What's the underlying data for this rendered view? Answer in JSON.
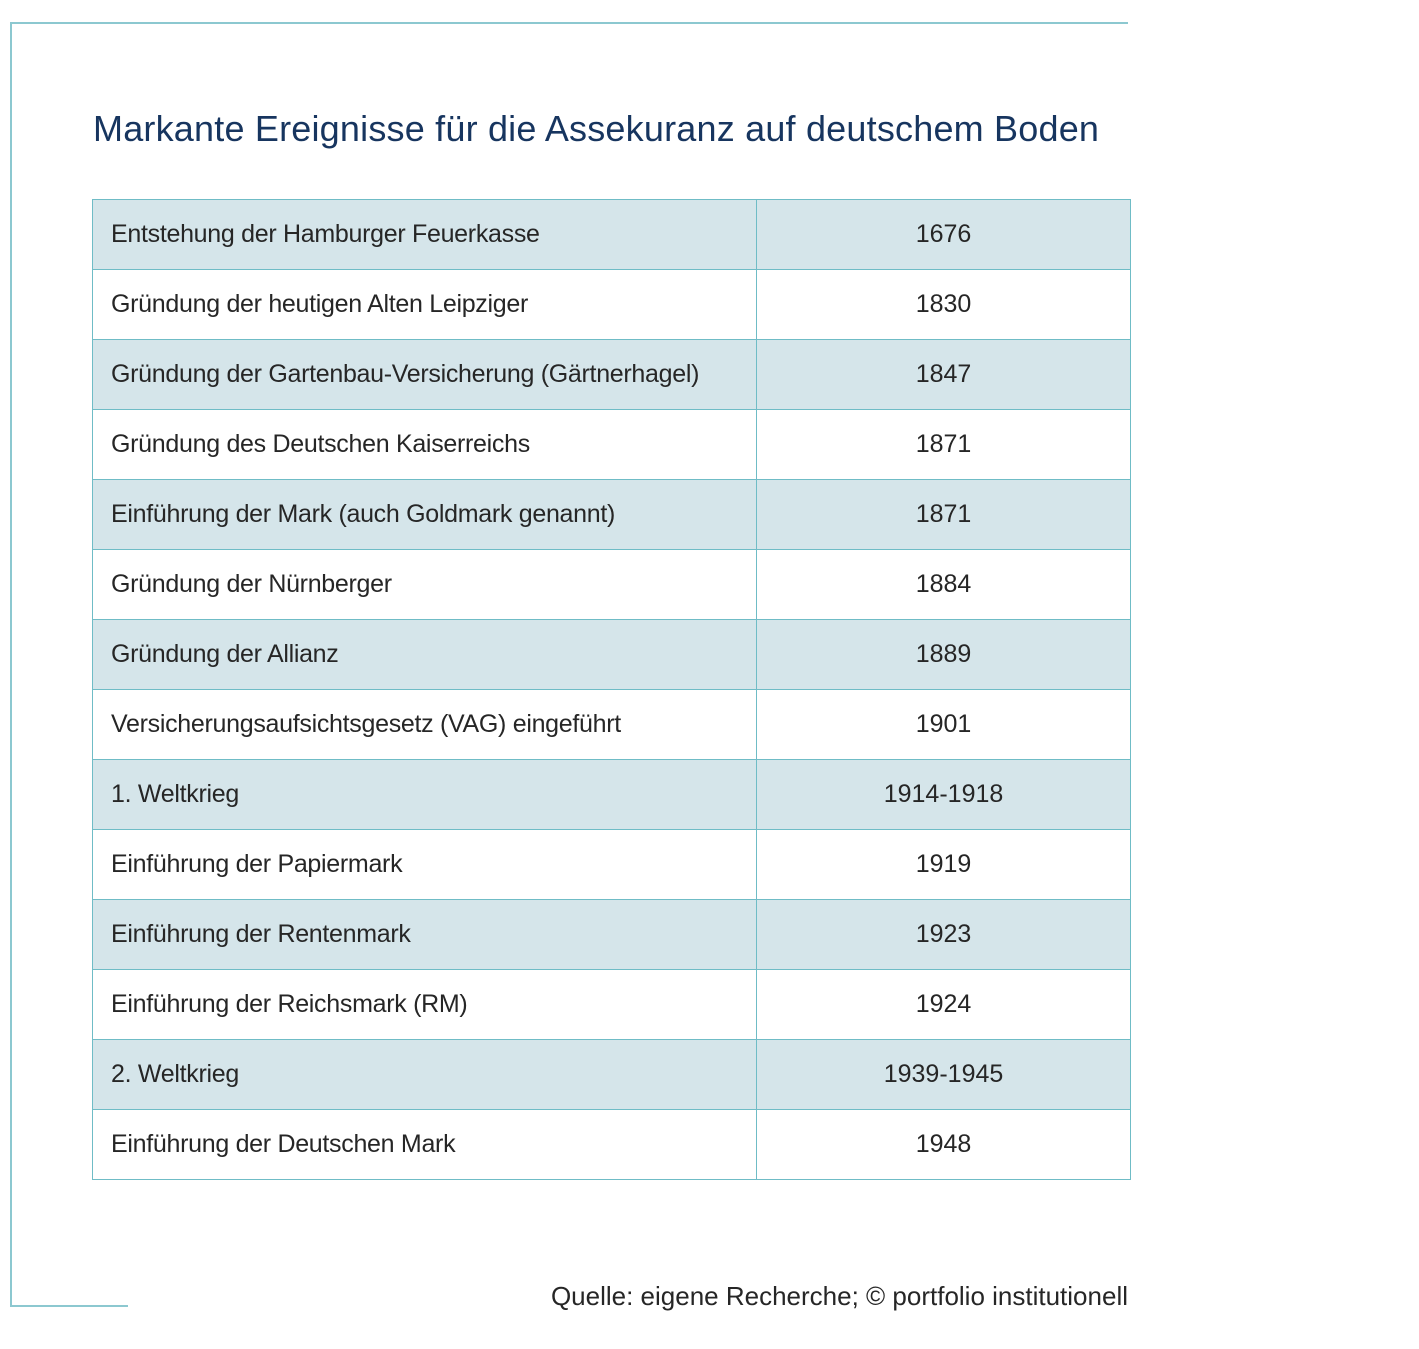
{
  "title": "Markante Ereignisse für die Assekuranz auf deutschem Boden",
  "colors": {
    "title": "#17355f",
    "frame": "#8cc8d0",
    "table_border": "#6fbcc6",
    "shaded_row": "#d5e5ea",
    "text": "#262626"
  },
  "table": {
    "rows": [
      {
        "event": "Entstehung der Hamburger Feuerkasse",
        "year": "1676"
      },
      {
        "event": "Gründung der heutigen Alten Leipziger",
        "year": "1830"
      },
      {
        "event": "Gründung der Gartenbau-Versicherung (Gärtnerhagel)",
        "year": "1847"
      },
      {
        "event": "Gründung des Deutschen Kaiserreichs",
        "year": "1871"
      },
      {
        "event": "Einführung der Mark (auch Goldmark genannt)",
        "year": "1871"
      },
      {
        "event": "Gründung der Nürnberger",
        "year": "1884"
      },
      {
        "event": "Gründung der Allianz",
        "year": "1889"
      },
      {
        "event": "Versicherungsaufsichtsgesetz (VAG) eingeführt",
        "year": "1901"
      },
      {
        "event": "1. Weltkrieg",
        "year": "1914-1918"
      },
      {
        "event": "Einführung der Papiermark",
        "year": "1919"
      },
      {
        "event": "Einführung der Rentenmark",
        "year": "1923"
      },
      {
        "event": "Einführung der Reichsmark (RM)",
        "year": "1924"
      },
      {
        "event": "2. Weltkrieg",
        "year": "1939-1945"
      },
      {
        "event": "Einführung der Deutschen Mark",
        "year": "1948"
      }
    ]
  },
  "source": "Quelle: eigene Recherche; © portfolio institutionell"
}
